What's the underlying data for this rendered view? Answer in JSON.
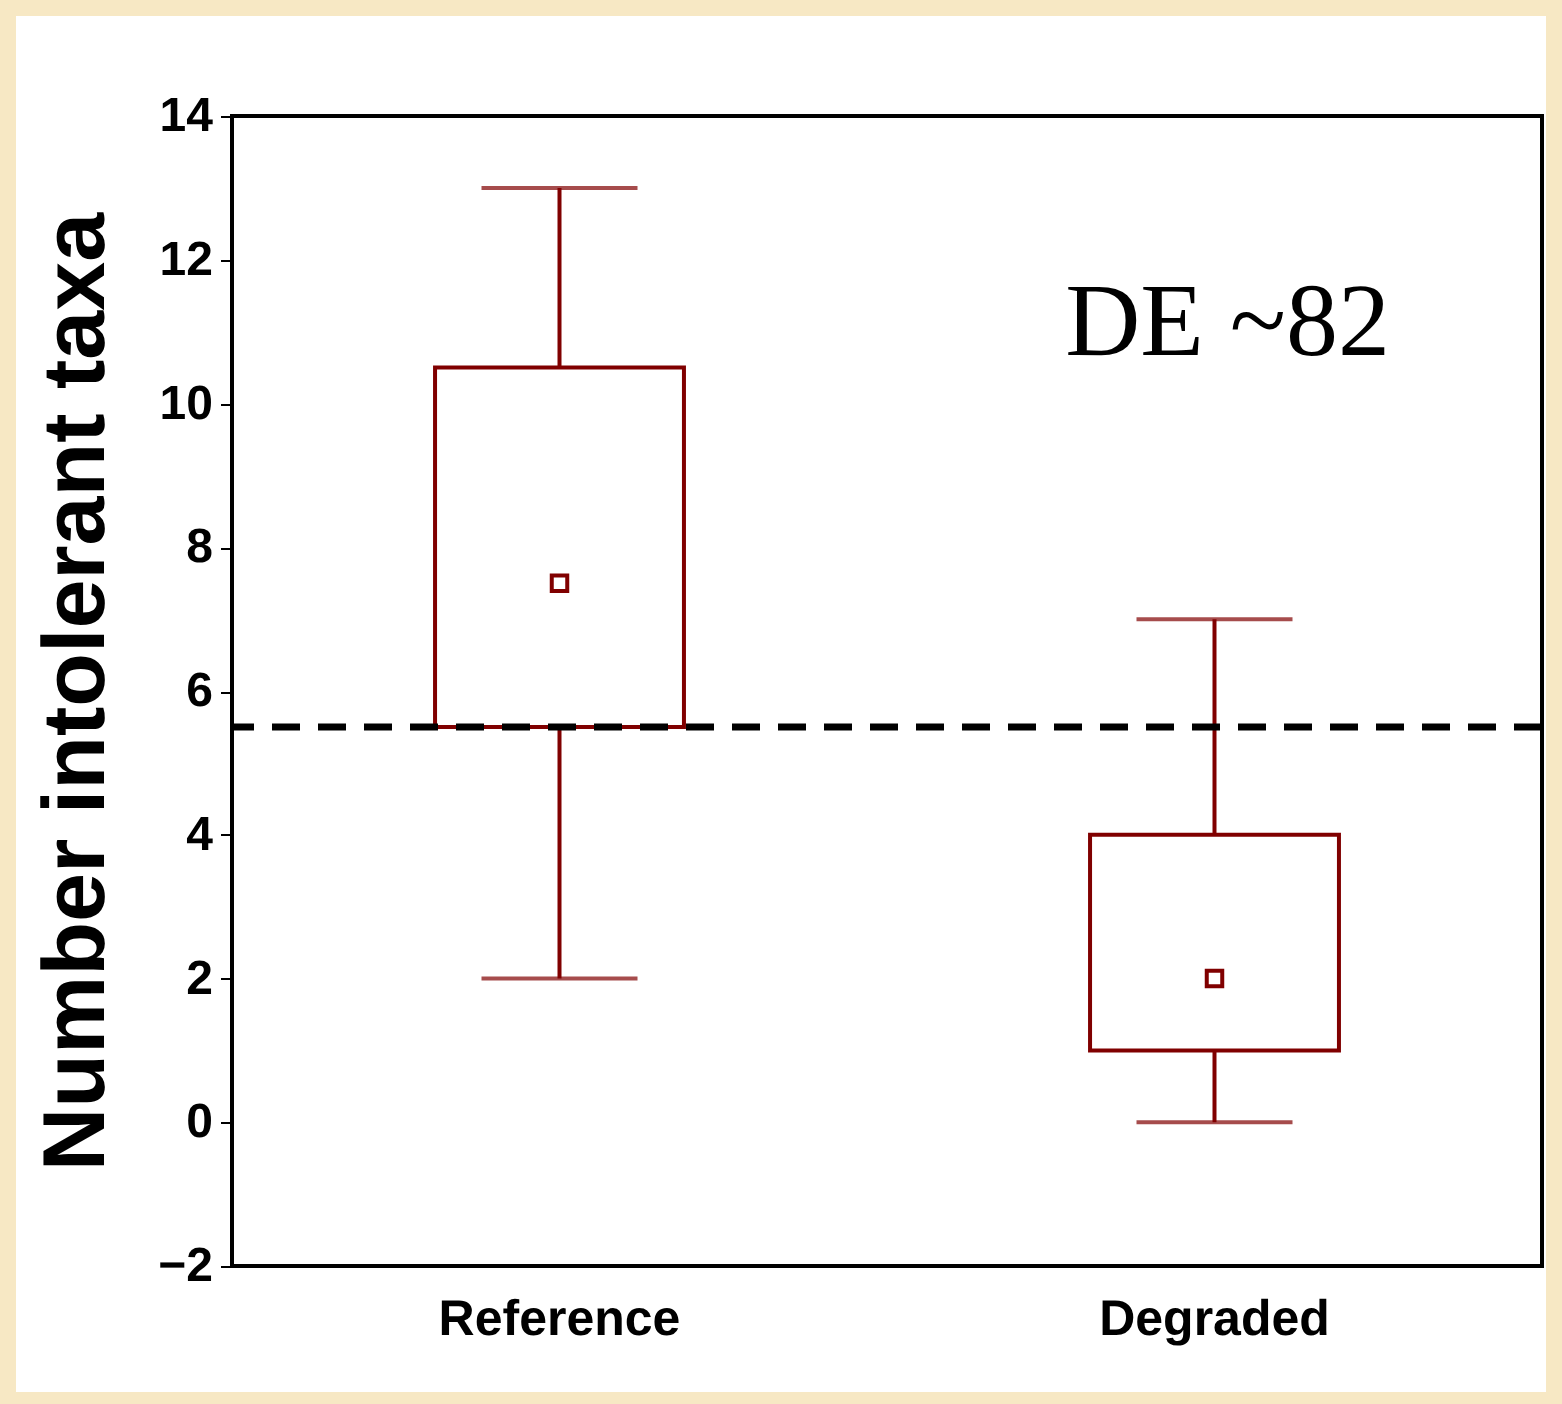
{
  "chart_data": {
    "type": "box",
    "ylabel": "Number intolerant taxa",
    "categories": [
      "Reference",
      "Degraded"
    ],
    "boxes": [
      {
        "low": 2,
        "q1": 5.5,
        "median": 7.5,
        "q3": 10.5,
        "high": 13
      },
      {
        "low": 0,
        "q1": 1,
        "median": 2,
        "q3": 4,
        "high": 7
      }
    ],
    "color": "#800000",
    "ylim": [
      -2,
      14
    ],
    "yticks": [
      -2,
      0,
      2,
      4,
      6,
      8,
      10,
      12,
      14
    ],
    "grid": false,
    "ref_lines": [
      {
        "axis": "y",
        "value": 5.5,
        "line_style": "dashed",
        "color": "#000000"
      }
    ],
    "annotations": [
      "DE ~82"
    ]
  }
}
